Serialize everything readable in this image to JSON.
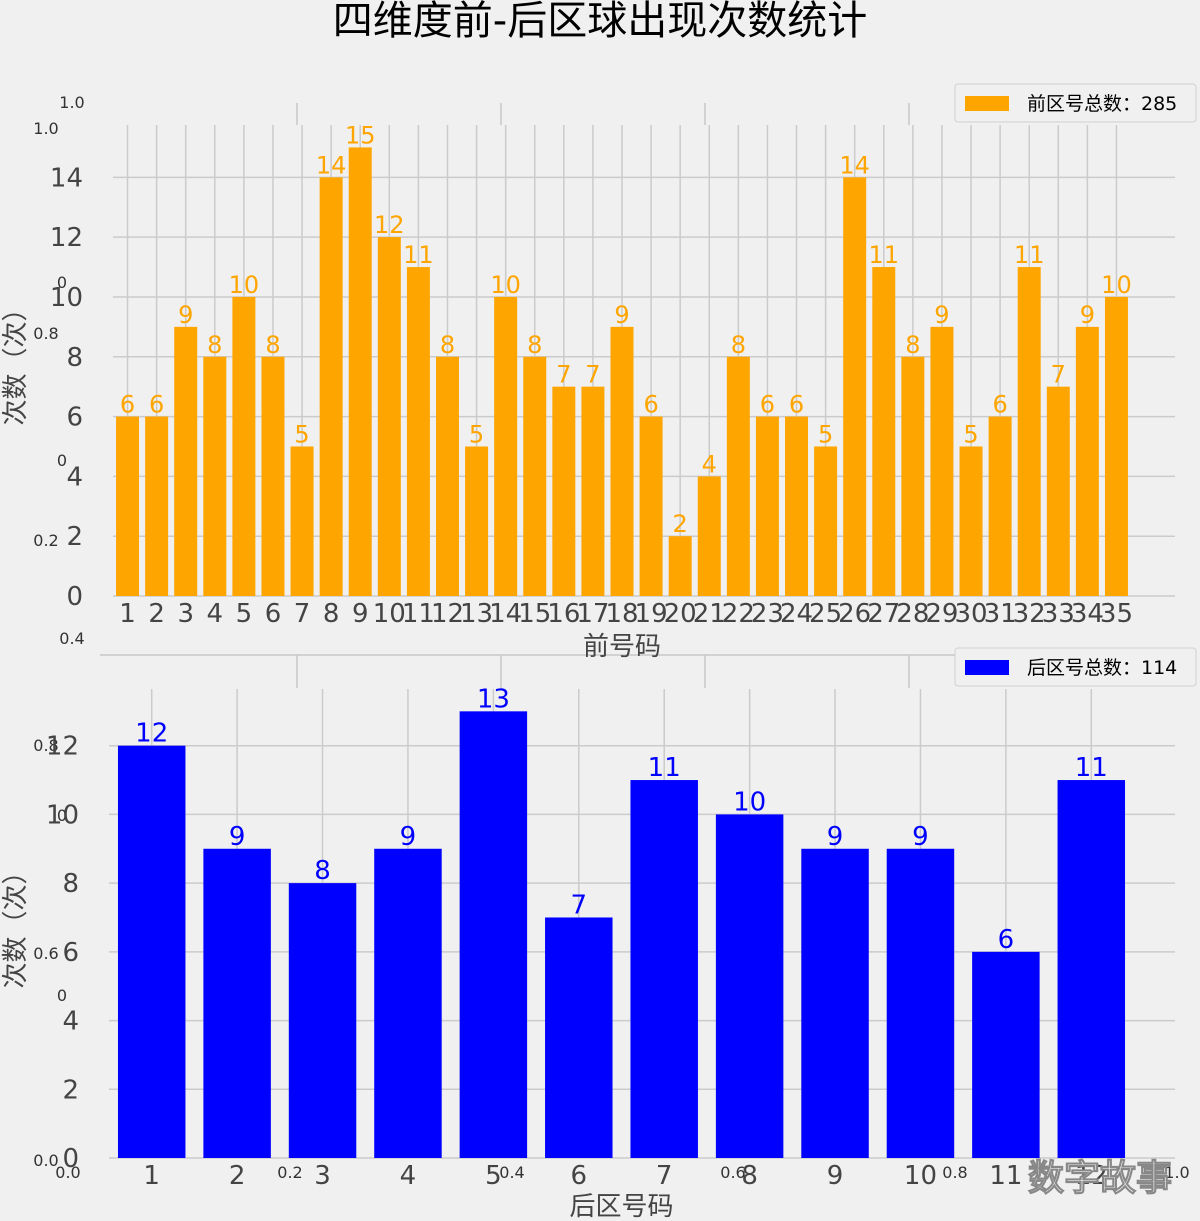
{
  "title": "四维度前-后区球出现次数统计",
  "watermark": "数字故事",
  "background_axis_ticks": {
    "y_top": [
      "1.0",
      "1.0",
      "0",
      "0.8",
      "0",
      "0.2",
      "0.4",
      "0.8",
      "0",
      "0.6",
      "0",
      "0.0"
    ],
    "x_bottom": [
      "0.0",
      "0.2",
      "0.4",
      "0.6",
      "0.8",
      "1.0"
    ]
  },
  "chart_data": [
    {
      "type": "bar",
      "categories": [
        "1",
        "2",
        "3",
        "4",
        "5",
        "6",
        "7",
        "8",
        "9",
        "10",
        "11",
        "12",
        "13",
        "14",
        "15",
        "16",
        "17",
        "18",
        "19",
        "20",
        "21",
        "22",
        "23",
        "24",
        "25",
        "26",
        "27",
        "28",
        "29",
        "30",
        "31",
        "32",
        "33",
        "34",
        "35"
      ],
      "values": [
        6,
        6,
        9,
        8,
        10,
        8,
        5,
        14,
        15,
        12,
        11,
        8,
        5,
        10,
        8,
        7,
        7,
        9,
        6,
        2,
        4,
        8,
        6,
        6,
        5,
        14,
        11,
        8,
        9,
        5,
        6,
        11,
        7,
        9,
        10
      ],
      "xlabel": "前号码",
      "ylabel": "次数（次）",
      "legend": "前区号总数：285",
      "color": "#ffa500",
      "yticks": [
        0,
        2,
        4,
        6,
        8,
        10,
        12,
        14
      ],
      "ylim": [
        0,
        15.75
      ],
      "grid": true,
      "legend_position": "top-right"
    },
    {
      "type": "bar",
      "categories": [
        "1",
        "2",
        "3",
        "4",
        "5",
        "6",
        "7",
        "8",
        "9",
        "10",
        "11",
        "12"
      ],
      "values": [
        12,
        9,
        8,
        9,
        13,
        7,
        11,
        10,
        9,
        9,
        6,
        11
      ],
      "xlabel": "后区号码",
      "ylabel": "次数（次）",
      "legend": "后区号总数：114",
      "color": "#0000ff",
      "yticks": [
        0,
        2,
        4,
        6,
        8,
        10,
        12
      ],
      "ylim": [
        0,
        13.65
      ],
      "grid": true,
      "legend_position": "top-right"
    }
  ]
}
